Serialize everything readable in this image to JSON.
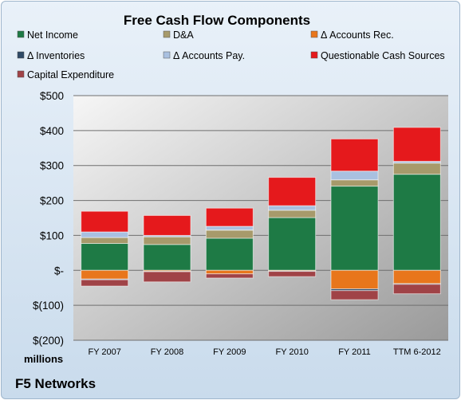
{
  "chart_data": {
    "type": "bar",
    "stacked": true,
    "title": "Free Cash Flow Components",
    "units_label": "millions",
    "footer_label": "F5 Networks",
    "categories": [
      "FY 2007",
      "FY 2008",
      "FY 2009",
      "FY 2010",
      "FY 2011",
      "TTM 6-2012"
    ],
    "ylim": [
      -200,
      500
    ],
    "yticks": [
      500,
      400,
      300,
      200,
      100,
      0,
      -100,
      -200
    ],
    "ytick_labels": [
      "$500",
      "$400",
      "$300",
      "$200",
      "$100",
      "$-",
      "$(100)",
      "$(200)"
    ],
    "grid": true,
    "legend_position": "top",
    "series": [
      {
        "name": "Net Income",
        "color": "#1e7a45",
        "values": [
          77,
          74,
          92,
          151,
          241,
          275
        ]
      },
      {
        "name": "D&A",
        "color": "#a79a6b",
        "values": [
          17,
          22,
          23,
          21,
          18,
          32
        ]
      },
      {
        "name": "Δ Accounts Rec.",
        "color": "#e8761c",
        "values": [
          -25,
          -3,
          -10,
          -2,
          -53,
          -38
        ]
      },
      {
        "name": "Δ Inventories",
        "color": "#2f4a66",
        "values": [
          -2,
          -1,
          1,
          -1,
          -5,
          -2
        ]
      },
      {
        "name": "Δ Accounts Pay.",
        "color": "#a9c0e0",
        "values": [
          16,
          4,
          10,
          13,
          25,
          5
        ]
      },
      {
        "name": "Questionable Cash Sources",
        "color": "#e5191c",
        "values": [
          59,
          57,
          52,
          81,
          92,
          97
        ]
      },
      {
        "name": "Capital Expenditure",
        "color": "#a04347",
        "values": [
          -18,
          -29,
          -12,
          -15,
          -26,
          -27
        ]
      }
    ]
  }
}
